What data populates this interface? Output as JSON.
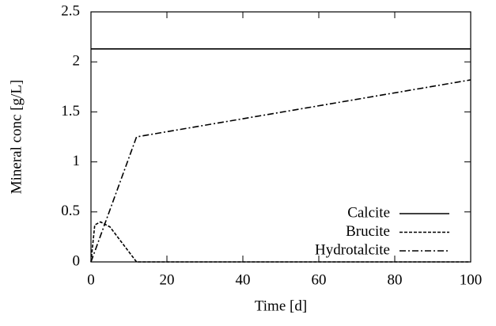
{
  "chart_data": {
    "type": "line",
    "xlabel": "Time [d]",
    "ylabel": "Mineral conc [g/L]",
    "xlim": [
      0,
      100
    ],
    "xticks": [
      0,
      20,
      40,
      60,
      80,
      100
    ],
    "ylim": [
      0,
      2.5
    ],
    "yticks": [
      0,
      0.5,
      1,
      1.5,
      2,
      2.5
    ],
    "legend": "lower right",
    "series": [
      {
        "name": "Calcite",
        "color": "#000000",
        "dash": "solid",
        "x": [
          0,
          100
        ],
        "values": [
          2.13,
          2.13
        ]
      },
      {
        "name": "Brucite",
        "color": "#000000",
        "dash": "dashed",
        "x": [
          0,
          1,
          2.5,
          5,
          8,
          12,
          100
        ],
        "values": [
          0,
          0.37,
          0.4,
          0.35,
          0.2,
          0,
          0
        ]
      },
      {
        "name": "Hydrotalcite",
        "color": "#000000",
        "dash": "dashdot",
        "x": [
          0,
          12,
          100
        ],
        "values": [
          0,
          1.25,
          1.82
        ]
      }
    ]
  }
}
